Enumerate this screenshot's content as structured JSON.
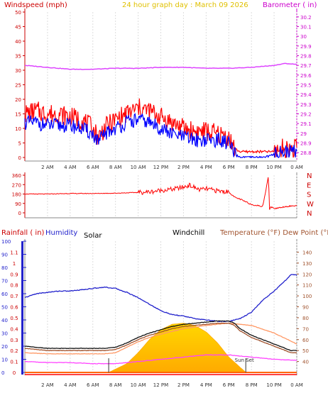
{
  "header": {
    "left_label": "Windspeed (mph)",
    "center_label": "24 hour graph day : March 09 2026",
    "right_label": "Barometer ( in)"
  },
  "colors": {
    "axis_red": "#cc0000",
    "axis_magenta": "#cc00cc",
    "wind_red": "#ff0000",
    "gust_blue": "#0000ff",
    "baro_magenta": "#dd44ff",
    "solar_yellow": "#ffcc00",
    "humidity_blue": "#2222cc",
    "temp_brown": "#a0522d",
    "dew_orange": "#ff9966",
    "windchill_black": "#111111",
    "rain_magenta": "#ff44ff",
    "title_yellow": "#e0c000"
  },
  "chart_data": [
    {
      "type": "line",
      "title": "24 hour graph day : March 09 2026",
      "ylabel": "Windspeed (mph)",
      "y2label": "Barometer ( in)",
      "ylim": [
        0,
        50
      ],
      "y2lim": [
        28.75,
        30.25
      ],
      "yticks": [
        0,
        5,
        10,
        15,
        20,
        25,
        30,
        35,
        40,
        45,
        50
      ],
      "y2ticks": [
        28.8,
        28.9,
        29.0,
        29.1,
        29.2,
        29.3,
        29.4,
        29.5,
        29.6,
        29.7,
        29.8,
        29.9,
        30.0,
        30.1,
        30.2
      ],
      "y2tick_labels": [
        "28.8",
        "28.9",
        "29",
        "29.1",
        "29.2",
        "29.3",
        "29.4",
        "29.5",
        "29.6",
        "29.7",
        "29.8",
        "29.9",
        "30",
        "30.1",
        "30.2"
      ],
      "xticks": [
        2,
        4,
        6,
        8,
        10,
        12,
        14,
        16,
        18,
        20,
        22,
        24
      ],
      "xtick_labels": [
        "2 AM",
        "4 AM",
        "6 AM",
        "8 AM",
        "10 AM",
        "12 PM",
        "2 PM",
        "4 PM",
        "6 PM",
        "8 PM",
        "10 PM",
        "0 AM"
      ],
      "xlim": [
        0,
        24
      ],
      "series": [
        {
          "axis": "y2",
          "x": [
            0,
            2,
            4,
            6,
            8,
            10,
            12,
            14,
            16,
            18,
            20,
            22,
            23,
            24
          ],
          "values": [
            29.7,
            29.68,
            29.66,
            29.66,
            29.67,
            29.67,
            29.68,
            29.68,
            29.67,
            29.67,
            29.68,
            29.7,
            29.72,
            29.71
          ]
        },
        {
          "axis": "y",
          "x": [
            0,
            1,
            2,
            3,
            4,
            5,
            6,
            6.5,
            7,
            8,
            9,
            10,
            11,
            12,
            13,
            14,
            15,
            16,
            17,
            18,
            18.5,
            19,
            20,
            21,
            22,
            22.5,
            23,
            24
          ],
          "values": [
            15,
            16,
            15,
            15,
            14,
            13,
            10,
            7,
            10,
            13,
            15,
            17,
            16,
            14,
            12,
            10,
            9,
            9,
            8,
            7,
            3,
            2,
            2,
            2,
            2,
            3,
            3,
            3
          ]
        },
        {
          "axis": "y",
          "x": [
            0,
            1,
            2,
            3,
            4,
            5,
            6,
            6.5,
            7,
            8,
            9,
            10,
            11,
            12,
            13,
            14,
            15,
            16,
            17,
            18,
            18.5,
            19,
            20,
            21,
            22,
            22.5,
            23,
            24
          ],
          "values": [
            12,
            12,
            11,
            11,
            11,
            10,
            8,
            5,
            8,
            10,
            12,
            13,
            12,
            10,
            8,
            7,
            6,
            6,
            6,
            5,
            1,
            0,
            0,
            0,
            1,
            2,
            2,
            2
          ]
        }
      ]
    },
    {
      "type": "line",
      "ylim": [
        0,
        360
      ],
      "yticks": [
        0,
        90,
        180,
        270,
        360
      ],
      "ytick_labels": [
        "0",
        "90",
        "180",
        "270",
        "360"
      ],
      "y2tick_labels": [
        "N",
        "W",
        "S",
        "E",
        "N"
      ],
      "xlim": [
        0,
        24
      ],
      "series": [
        {
          "x": [
            0,
            2,
            4,
            6,
            8,
            10,
            11,
            12,
            13,
            14,
            14.5,
            15,
            15.5,
            16,
            17,
            18,
            18.5,
            19,
            20,
            21,
            21.5,
            21.6,
            21.7,
            22,
            23,
            24
          ],
          "values": [
            180,
            180,
            185,
            185,
            188,
            195,
            200,
            215,
            225,
            245,
            265,
            240,
            220,
            230,
            210,
            200,
            150,
            130,
            80,
            60,
            355,
            30,
            60,
            40,
            60,
            70
          ]
        }
      ]
    },
    {
      "type": "line",
      "ylabel": "Rainfall ( in)",
      "ylabel2": "Humidity",
      "y2label": "Temperature (°F) Dew Point (°F)",
      "legend_labels": [
        "Solar",
        "Windchill"
      ],
      "annotations": [
        {
          "text": "Sun Set",
          "x": 19.5
        }
      ],
      "rain_ticks": [
        0,
        0.1,
        0.2,
        0.3,
        0.4,
        0.5,
        0.6,
        0.7,
        0.8,
        0.9,
        1.0,
        1.1
      ],
      "rain_tick_labels": [
        "0",
        "0.1",
        "0.2",
        "0.3",
        "0.4",
        "0.5",
        "0.6",
        "0.7",
        "0.8",
        "0.9",
        "1",
        "1.1"
      ],
      "humidity_ticks": [
        0,
        10,
        20,
        30,
        40,
        50,
        60,
        70,
        80,
        90,
        100
      ],
      "temp_ticks": [
        40,
        50,
        60,
        70,
        80,
        90,
        100,
        110,
        120,
        130,
        140
      ],
      "xticks": [
        2,
        4,
        6,
        8,
        10,
        12,
        14,
        16,
        18,
        20,
        22,
        24
      ],
      "xtick_labels": [
        "2 AM",
        "4 AM",
        "6 AM",
        "8 AM",
        "10 AM",
        "12 PM",
        "2 PM",
        "4 PM",
        "6 PM",
        "8 PM",
        "10 PM",
        "0 AM"
      ],
      "xlim": [
        0,
        24
      ],
      "markers": [
        {
          "label": "sunrise",
          "x": 7.4
        },
        {
          "label": "sunset",
          "x": 19.5
        }
      ],
      "series": [
        {
          "axis": "humidity",
          "x": [
            0,
            1,
            2,
            3,
            4,
            5,
            6,
            7,
            8,
            9,
            10,
            11,
            12,
            13,
            14,
            15,
            16,
            17,
            18,
            19,
            20,
            21,
            22,
            23,
            23.5,
            24
          ],
          "values": [
            57,
            60,
            61,
            62,
            62,
            63,
            64,
            65,
            64,
            61,
            57,
            52,
            47,
            44,
            43,
            41,
            40,
            39,
            39,
            41,
            46,
            55,
            62,
            70,
            75,
            74
          ]
        },
        {
          "axis": "temp",
          "x": [
            0,
            1,
            2,
            3,
            4,
            5,
            6,
            7,
            8,
            9,
            10,
            11,
            12,
            13,
            14,
            15,
            16,
            17,
            18,
            18.5,
            19,
            20,
            21,
            22,
            23,
            23.5,
            24
          ],
          "values": [
            52,
            51,
            50,
            50,
            50,
            50,
            50,
            50,
            51,
            55,
            60,
            64,
            67,
            70,
            72,
            73,
            74,
            75,
            75,
            73,
            68,
            62,
            58,
            54,
            50,
            48,
            48
          ]
        },
        {
          "axis": "temp",
          "x": [
            0,
            2,
            4,
            6,
            7,
            8,
            9,
            10,
            11,
            12,
            14,
            16,
            18,
            20,
            22,
            24
          ],
          "values": [
            48,
            47,
            47,
            47,
            47,
            48,
            53,
            58,
            62,
            65,
            70,
            73,
            75,
            73,
            66,
            56
          ]
        },
        {
          "axis": "temp",
          "x": [
            0,
            2,
            4,
            6,
            7,
            8,
            10,
            12,
            14,
            16,
            18,
            20,
            22,
            24
          ],
          "values": [
            40,
            39,
            39,
            38,
            38,
            38,
            40,
            42,
            44,
            46,
            46,
            44,
            42,
            41
          ]
        },
        {
          "axis": "solar",
          "x": [
            7.4,
            9,
            10,
            11,
            12,
            13,
            14,
            15,
            16,
            17,
            18,
            19.5
          ],
          "values": [
            0,
            0.08,
            0.18,
            0.3,
            0.39,
            0.44,
            0.45,
            0.43,
            0.37,
            0.27,
            0.14,
            0
          ]
        },
        {
          "axis": "rain",
          "x": [
            0,
            24
          ],
          "values": [
            0,
            0
          ]
        }
      ]
    }
  ]
}
